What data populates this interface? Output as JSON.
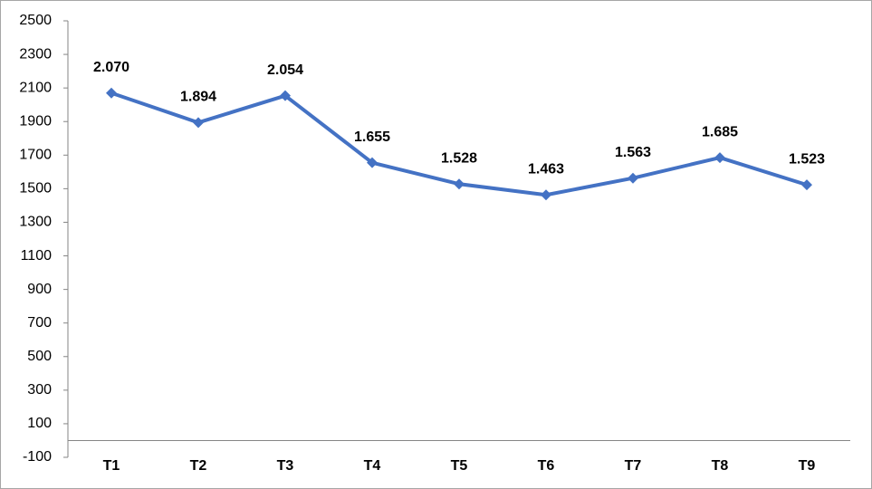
{
  "chart_data": {
    "type": "line",
    "categories": [
      "T1",
      "T2",
      "T3",
      "T4",
      "T5",
      "T6",
      "T7",
      "T8",
      "T9"
    ],
    "values": [
      2070,
      1894,
      2054,
      1655,
      1528,
      1463,
      1563,
      1685,
      1523
    ],
    "value_labels": [
      "2.070",
      "1.894",
      "2.054",
      "1.655",
      "1.528",
      "1.463",
      "1.563",
      "1.685",
      "1.523"
    ],
    "color": "#4472c4",
    "ylim": [
      -100,
      2500
    ],
    "yticks": [
      -100,
      100,
      300,
      500,
      700,
      900,
      1100,
      1300,
      1500,
      1700,
      1900,
      2100,
      2300,
      2500
    ],
    "grid": false
  }
}
